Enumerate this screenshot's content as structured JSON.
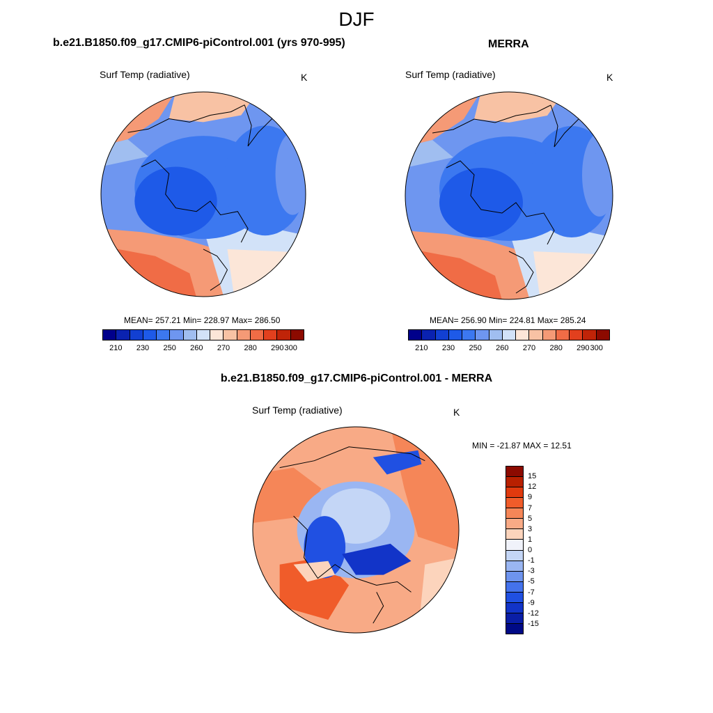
{
  "figure": {
    "title": "DJF"
  },
  "panels": [
    {
      "title": "b.e21.B1850.f09_g17.CMIP6-piControl.001 (yrs 970-995)",
      "variable": "Surf Temp (radiative)",
      "units": "K",
      "stats": "MEAN= 257.21  Min= 228.97  Max= 286.50",
      "pattern": "model"
    },
    {
      "title": "MERRA",
      "variable": "Surf Temp (radiative)",
      "units": "K",
      "stats": "MEAN= 256.90  Min= 224.81  Max= 285.24",
      "pattern": "obs"
    },
    {
      "title": "b.e21.B1850.f09_g17.CMIP6-piControl.001 - MERRA",
      "variable": "Surf Temp (radiative)",
      "units": "K",
      "stats": "MIN = -21.87 MAX =  12.51",
      "pattern": "diff"
    }
  ],
  "colorbar_abs": {
    "colors": [
      "#00008b",
      "#0a22b0",
      "#1240d2",
      "#1e5ae8",
      "#3c78f0",
      "#6e96f0",
      "#a0bef0",
      "#d2e2f8",
      "#fce6d8",
      "#f8c2a4",
      "#f59a76",
      "#f06c46",
      "#e2401e",
      "#c02408",
      "#8c0a00"
    ],
    "ticks": [
      "210",
      "230",
      "250",
      "260",
      "270",
      "280",
      "290",
      "300"
    ]
  },
  "colorbar_diff": {
    "colors": [
      "#8c0a00",
      "#b82000",
      "#e03a0e",
      "#f05c2a",
      "#f58658",
      "#f8aa86",
      "#fcd4bc",
      "#f0f2fa",
      "#c4d6f6",
      "#9ab6f2",
      "#6e94ee",
      "#4472ec",
      "#2050e2",
      "#1234c8",
      "#0a1ea6",
      "#000a86"
    ],
    "ticks": [
      "15",
      "12",
      "9",
      "7",
      "5",
      "3",
      "1",
      "0",
      "-1",
      "-3",
      "-5",
      "-7",
      "-9",
      "-12",
      "-15"
    ]
  }
}
